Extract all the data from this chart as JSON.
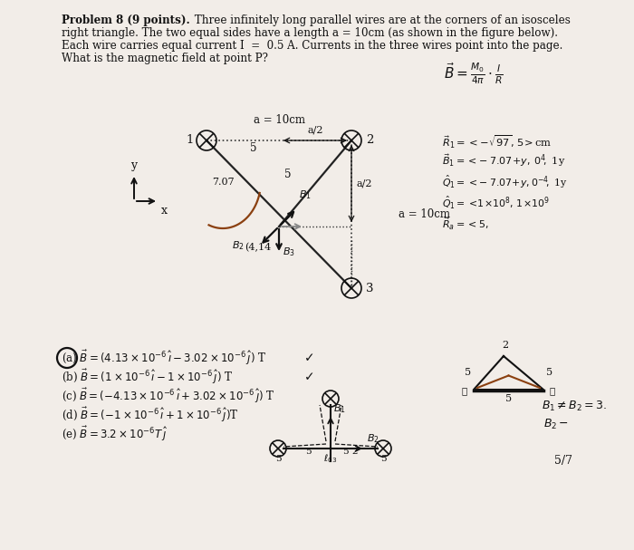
{
  "bg_color": "#f2ede8",
  "line1a": "Problem 8 (9 points).",
  "line1b": " Three infinitely long parallel wires are at the corners of an isosceles",
  "line2": "right triangle. The two equal sides have a length a = 10cm (as shown in the figure below).",
  "line3": "Each wire carries equal current I  =  0.5 A. Currents in the three wires point into the page.",
  "line4": "What is the magnetic field at point P?",
  "wire1_label": "1",
  "wire2_label": "2",
  "wire3_label": "3",
  "a_label_top": "a = 10cm",
  "a_label_right": "a = 10cm",
  "dim_5_top": "5",
  "dim_5_mid": "5",
  "dist_707": "7.07",
  "point_label": "(4,14",
  "answer_a": "(a) $\\vec{B} = (4.13 \\times 10^{-6}\\, \\hat{\\imath} - 3.02 \\times 10^{-6}\\, \\hat{\\jmath})$ T",
  "answer_b": "(b) $\\vec{B} = (1 \\times 10^{-6}\\, \\hat{\\imath} - 1 \\times 10^{-6}\\, \\hat{\\jmath})$ T",
  "answer_c": "(c) $\\vec{B} = (-4.13 \\times 10^{-6}\\, \\hat{\\imath} + 3.02 \\times 10^{-6}\\, \\hat{\\jmath})$ T",
  "answer_d": "(d) $\\vec{B} = (-1 \\times 10^{-6}\\, \\hat{\\imath} + 1 \\times 10^{-6}\\, \\hat{\\jmath})$T",
  "answer_e": "(e) $\\vec{B} = 3.2 \\times 10^{-6}T\\, \\hat{\\jmath}$",
  "page_num": "5/7"
}
